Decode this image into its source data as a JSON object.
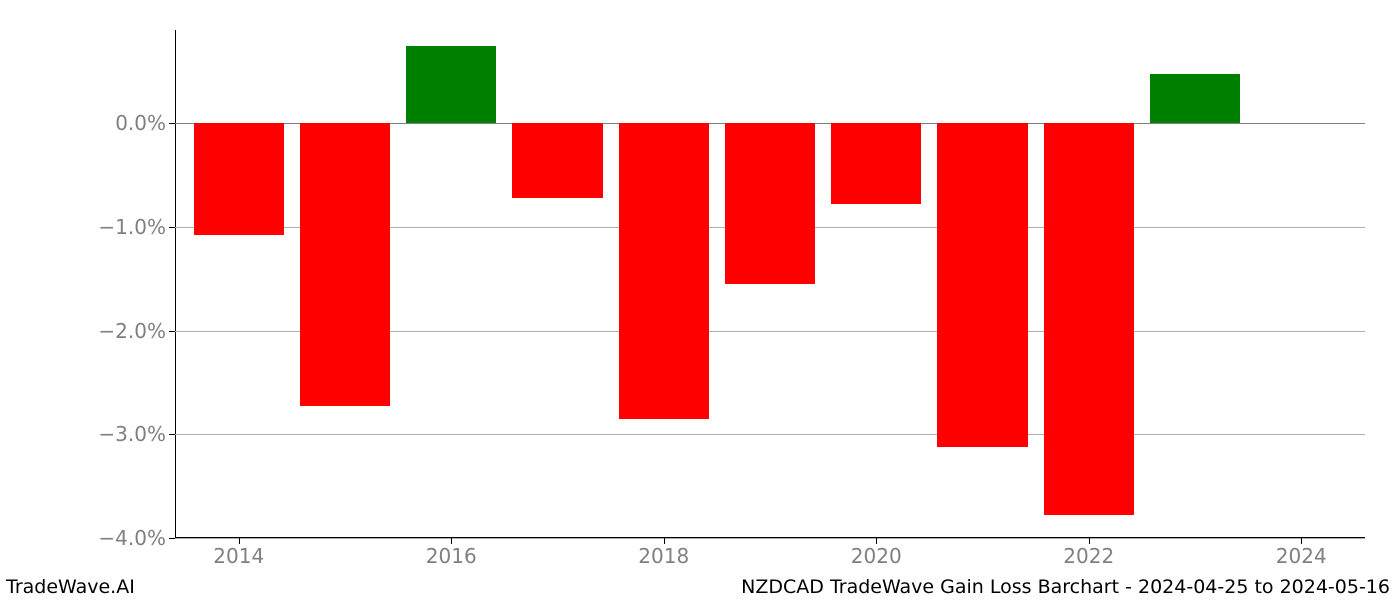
{
  "chart": {
    "type": "bar",
    "background_color": "#ffffff",
    "grid_color": "#b0b0b0",
    "spine_color": "#000000",
    "zero_line_color": "#808080",
    "tick_color": "#808080",
    "tick_fontsize": 20,
    "footer_fontsize": 19,
    "positive_color": "#008000",
    "negative_color": "#ff0000",
    "ylim": [
      -4.0,
      0.9
    ],
    "yticks": [
      {
        "v": 0.0,
        "label": "0.0%"
      },
      {
        "v": -1.0,
        "label": "−1.0%"
      },
      {
        "v": -2.0,
        "label": "−2.0%"
      },
      {
        "v": -3.0,
        "label": "−3.0%"
      },
      {
        "v": -4.0,
        "label": "−4.0%"
      }
    ],
    "xlim": [
      2013.4,
      2024.6
    ],
    "xticks": [
      {
        "v": 2014,
        "label": "2014"
      },
      {
        "v": 2016,
        "label": "2016"
      },
      {
        "v": 2018,
        "label": "2018"
      },
      {
        "v": 2020,
        "label": "2020"
      },
      {
        "v": 2022,
        "label": "2022"
      },
      {
        "v": 2024,
        "label": "2024"
      }
    ],
    "bar_width": 0.85,
    "bars": [
      {
        "x": 2014,
        "value": -1.08
      },
      {
        "x": 2015,
        "value": -2.73
      },
      {
        "x": 2016,
        "value": 0.75
      },
      {
        "x": 2017,
        "value": -0.72
      },
      {
        "x": 2018,
        "value": -2.85
      },
      {
        "x": 2019,
        "value": -1.55
      },
      {
        "x": 2020,
        "value": -0.78
      },
      {
        "x": 2021,
        "value": -3.12
      },
      {
        "x": 2022,
        "value": -3.78
      },
      {
        "x": 2023,
        "value": 0.48
      }
    ]
  },
  "footer": {
    "left": "TradeWave.AI",
    "right": "NZDCAD TradeWave Gain Loss Barchart - 2024-04-25 to 2024-05-16"
  }
}
